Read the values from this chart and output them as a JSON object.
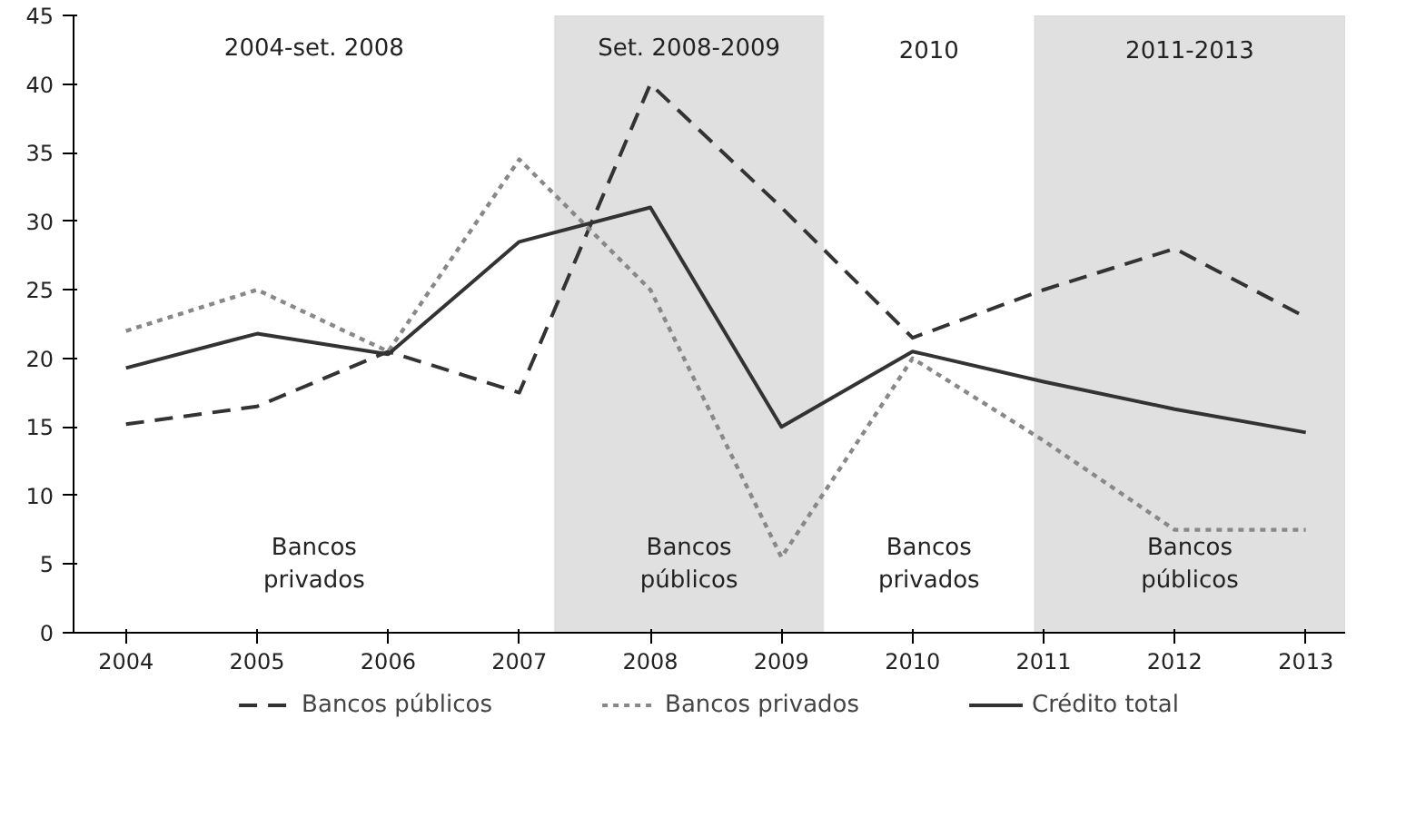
{
  "chart_data": {
    "type": "line",
    "x": [
      2004,
      2005,
      2006,
      2007,
      2008,
      2009,
      2010,
      2011,
      2012,
      2013
    ],
    "xlim": [
      2003.6,
      2013.3
    ],
    "xticks": [
      2004,
      2005,
      2006,
      2007,
      2008,
      2009,
      2010,
      2011,
      2012,
      2013
    ],
    "ylim": [
      0,
      45
    ],
    "yticks": [
      0,
      5,
      10,
      15,
      20,
      25,
      30,
      35,
      40,
      45
    ],
    "series": [
      {
        "name": "Bancos públicos",
        "color": "#333333",
        "line_style": "dashed",
        "values": [
          15.2,
          16.5,
          20.5,
          17.5,
          40,
          31,
          21.5,
          25,
          28,
          23
        ]
      },
      {
        "name": "Bancos privados",
        "color": "#888888",
        "line_style": "dotted",
        "values": [
          22,
          25,
          20.5,
          34.5,
          25,
          5.5,
          20,
          14,
          7.5,
          7.5
        ]
      },
      {
        "name": "Crédito total",
        "color": "#333333",
        "line_style": "solid",
        "values": [
          19.3,
          21.8,
          20.3,
          28.5,
          31,
          15,
          20.5,
          18.3,
          16.3,
          14.6
        ]
      }
    ],
    "bands": [
      {
        "axis": "x",
        "from": 2007.27,
        "to": 2009.32,
        "color": "#e0e0e0"
      },
      {
        "axis": "x",
        "from": 2010.93,
        "to": 2013.3,
        "color": "#e0e0e0"
      }
    ],
    "annotations": [
      "2004-set. 2008",
      "Set. 2008-2009",
      "2010",
      "2011-2013",
      "Bancos\nprivados",
      "Bancos\npúblicos",
      "Bancos\nprivados",
      "Bancos\npúblicos"
    ],
    "grid": false,
    "legend": "bottom",
    "marker": "none"
  }
}
